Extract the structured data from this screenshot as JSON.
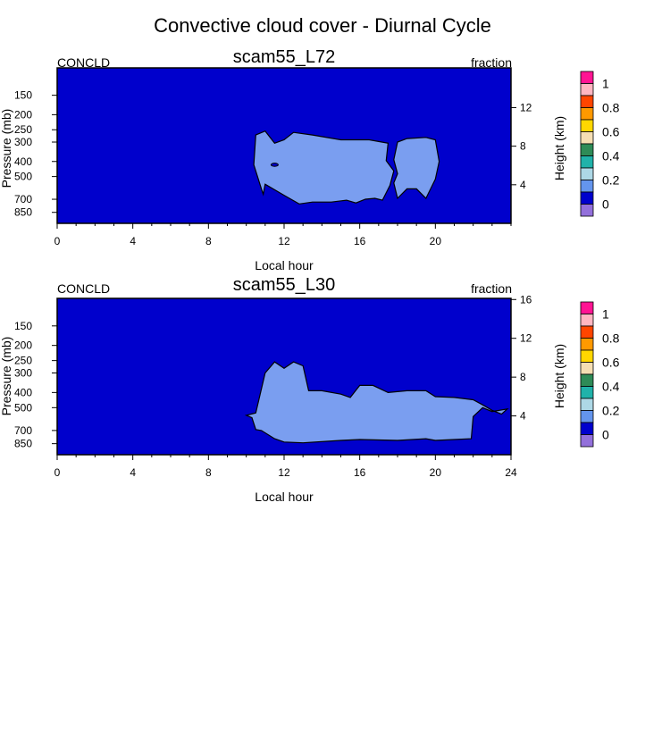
{
  "title": "Convective cloud cover - Diurnal Cycle",
  "colors": {
    "background_field": "#0000cc",
    "cloud_field": "#7a9ef0",
    "outline": "#000000"
  },
  "colorbar": {
    "labels": [
      "1",
      "0.8",
      "0.6",
      "0.4",
      "0.2",
      "0"
    ],
    "swatches": [
      "#ff1493",
      "#ffb6c1",
      "#ff4500",
      "#ff9900",
      "#ffd700",
      "#f5deb3",
      "#2e8b57",
      "#20b2aa",
      "#add8e6",
      "#6495ed",
      "#0000cd",
      "#9370db"
    ]
  },
  "chart_data": [
    {
      "type": "contour",
      "variable": "CONCLD",
      "units": "fraction",
      "title": "scam55_L72",
      "xlabel": "Local hour",
      "ylabel": "Pressure (mb)",
      "ylabel_right": "Height (km)",
      "x_ticks": [
        "0",
        "4",
        "8",
        "12",
        "16",
        "20"
      ],
      "y_ticks": [
        "150",
        "200",
        "250",
        "300",
        "400",
        "500",
        "700",
        "850"
      ],
      "y_right_ticks": [
        "12",
        "8",
        "4"
      ],
      "xlim": [
        0,
        24
      ],
      "y_pressure_range_mb": [
        100,
        1000
      ],
      "contour_levels": [
        0,
        0.1,
        0.2,
        0.3,
        0.4,
        0.5,
        0.6,
        0.7,
        0.8,
        0.9,
        1.0
      ],
      "region_fraction_range": [
        0.1,
        0.2
      ],
      "cloud_region_hours_pressure": [
        [
          10.5,
          270
        ],
        [
          11.0,
          255
        ],
        [
          11.5,
          305
        ],
        [
          12.0,
          290
        ],
        [
          12.5,
          260
        ],
        [
          13.5,
          270
        ],
        [
          15.0,
          290
        ],
        [
          16.5,
          290
        ],
        [
          17.5,
          305
        ],
        [
          17.4,
          395
        ],
        [
          17.8,
          460
        ],
        [
          17.6,
          570
        ],
        [
          17.2,
          710
        ],
        [
          16.8,
          690
        ],
        [
          16.3,
          700
        ],
        [
          15.8,
          740
        ],
        [
          15.3,
          710
        ],
        [
          14.5,
          730
        ],
        [
          13.5,
          730
        ],
        [
          12.8,
          750
        ],
        [
          12.0,
          660
        ],
        [
          11.0,
          560
        ],
        [
          10.9,
          650
        ],
        [
          10.8,
          600
        ],
        [
          10.4,
          420
        ]
      ],
      "cloud_region2_hours_pressure": [
        [
          18.0,
          300
        ],
        [
          18.5,
          285
        ],
        [
          19.5,
          280
        ],
        [
          20.0,
          290
        ],
        [
          20.2,
          400
        ],
        [
          20.0,
          520
        ],
        [
          19.5,
          690
        ],
        [
          19.0,
          600
        ],
        [
          18.5,
          600
        ],
        [
          18.0,
          690
        ],
        [
          17.8,
          550
        ],
        [
          18.0,
          480
        ],
        [
          17.8,
          390
        ]
      ],
      "small_hole": [
        11.5,
        420
      ]
    },
    {
      "type": "contour",
      "variable": "CONCLD",
      "units": "fraction",
      "title": "scam55_L30",
      "xlabel": "Local hour",
      "ylabel": "Pressure (mb)",
      "ylabel_right": "Height (km)",
      "x_ticks": [
        "0",
        "4",
        "8",
        "12",
        "16",
        "20",
        "24"
      ],
      "y_ticks": [
        "150",
        "200",
        "250",
        "300",
        "400",
        "500",
        "700",
        "850"
      ],
      "y_right_ticks": [
        "16",
        "12",
        "8",
        "4"
      ],
      "xlim": [
        0,
        24
      ],
      "y_pressure_range_mb": [
        100,
        1000
      ],
      "contour_levels": [
        0,
        0.1,
        0.2,
        0.3,
        0.4,
        0.5,
        0.6,
        0.7,
        0.8,
        0.9,
        1.0
      ],
      "region_fraction_range": [
        0.1,
        0.2
      ],
      "cloud_region_hours_pressure": [
        [
          10.0,
          560
        ],
        [
          10.5,
          540
        ],
        [
          11.0,
          300
        ],
        [
          11.5,
          255
        ],
        [
          12.0,
          280
        ],
        [
          12.5,
          255
        ],
        [
          13.0,
          270
        ],
        [
          13.3,
          390
        ],
        [
          14.0,
          390
        ],
        [
          15.0,
          410
        ],
        [
          15.5,
          430
        ],
        [
          16.0,
          360
        ],
        [
          16.7,
          360
        ],
        [
          17.5,
          400
        ],
        [
          18.5,
          390
        ],
        [
          19.5,
          390
        ],
        [
          20.0,
          425
        ],
        [
          21.0,
          430
        ],
        [
          22.0,
          445
        ],
        [
          22.5,
          480
        ],
        [
          23.0,
          520
        ],
        [
          23.5,
          550
        ],
        [
          23.8,
          510
        ],
        [
          23.0,
          530
        ],
        [
          22.5,
          500
        ],
        [
          22.0,
          570
        ],
        [
          21.9,
          790
        ],
        [
          21.0,
          800
        ],
        [
          20.0,
          810
        ],
        [
          19.5,
          790
        ],
        [
          18.0,
          810
        ],
        [
          16.0,
          800
        ],
        [
          15.0,
          810
        ],
        [
          13.0,
          840
        ],
        [
          12.0,
          830
        ],
        [
          11.5,
          790
        ],
        [
          10.8,
          700
        ],
        [
          10.5,
          690
        ],
        [
          10.3,
          580
        ]
      ]
    }
  ]
}
